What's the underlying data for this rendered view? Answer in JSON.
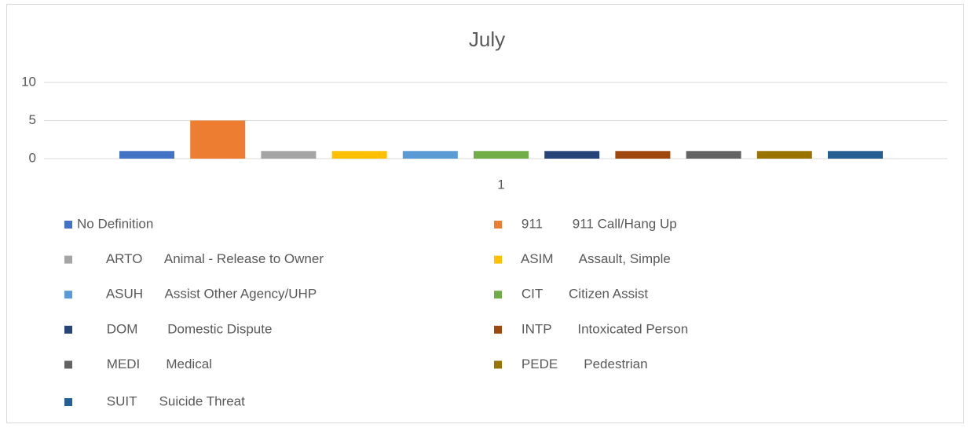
{
  "chart_data": {
    "type": "bar",
    "title": "July",
    "categories": [
      "1"
    ],
    "series": [
      {
        "name": "No Definition",
        "color": "#4472c4",
        "values": [
          1
        ]
      },
      {
        "name": "    911        911 Call/Hang Up",
        "color": "#ed7d31",
        "values": [
          5
        ]
      },
      {
        "name": "        ARTO      Animal - Release to Owner",
        "color": "#a5a5a5",
        "values": [
          1
        ]
      },
      {
        "name": "    ASIM       Assault, Simple",
        "color": "#ffc000",
        "values": [
          1
        ]
      },
      {
        "name": "        ASUH      Assist Other Agency/UHP",
        "color": "#5b9bd5",
        "values": [
          1
        ]
      },
      {
        "name": "    CIT       Citizen Assist",
        "color": "#70ad47",
        "values": [
          1
        ]
      },
      {
        "name": "        DOM        Domestic Dispute",
        "color": "#264478",
        "values": [
          1
        ]
      },
      {
        "name": "    INTP       Intoxicated Person",
        "color": "#9e480e",
        "values": [
          1
        ]
      },
      {
        "name": "        MEDI       Medical",
        "color": "#636363",
        "values": [
          1
        ]
      },
      {
        "name": "    PEDE       Pedestrian",
        "color": "#997300",
        "values": [
          1
        ]
      },
      {
        "name": "        SUIT      Suicide Threat",
        "color": "#255e91",
        "values": [
          1
        ]
      }
    ],
    "ylim": [
      0,
      10
    ],
    "yticks": [
      0,
      5,
      10
    ],
    "grid": true,
    "legend": "bottom"
  }
}
